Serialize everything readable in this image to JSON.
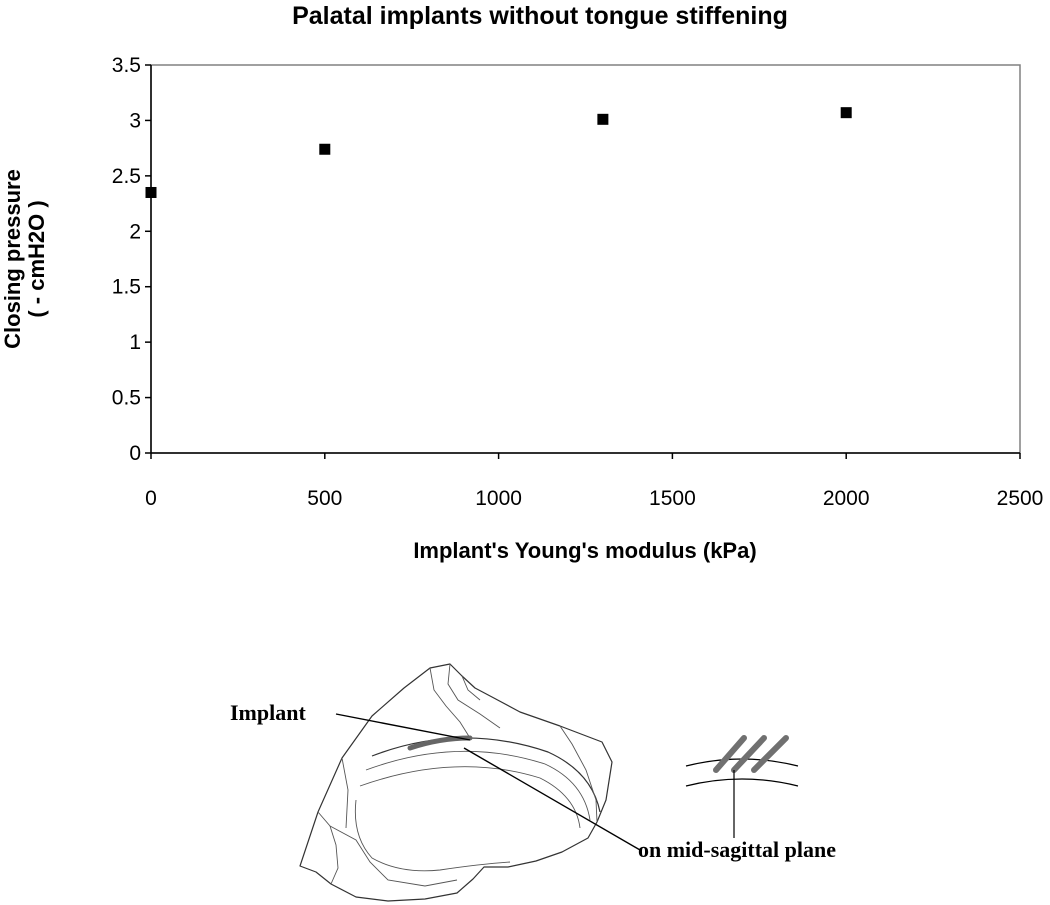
{
  "chart_data": {
    "type": "scatter",
    "title": "Palatal implants without tongue stiffening",
    "xlabel": "Implant's Young's modulus (kPa)",
    "ylabel_lines": [
      "Closing pressure",
      "( - cmH2O )"
    ],
    "xlim": [
      0,
      2500
    ],
    "ylim": [
      0,
      3.5
    ],
    "xticks": [
      0,
      500,
      1000,
      1500,
      2000,
      2500
    ],
    "yticks": [
      0,
      0.5,
      1,
      1.5,
      2,
      2.5,
      3,
      3.5
    ],
    "xtick_labels": [
      "0",
      "500",
      "1000",
      "1500",
      "2000",
      "2500"
    ],
    "ytick_labels": [
      "0",
      "0.5",
      "1",
      "1.5",
      "2",
      "2.5",
      "3",
      "3.5"
    ],
    "marker": "square",
    "marker_color": "#000000",
    "grid": false,
    "legend": false,
    "series": [
      {
        "x": [
          0,
          500,
          1300,
          2000
        ],
        "y": [
          2.35,
          2.74,
          3.01,
          3.07
        ]
      }
    ]
  },
  "figure_annotations": {
    "implant_label": "Implant",
    "plane_label": "on mid-sagittal plane"
  }
}
